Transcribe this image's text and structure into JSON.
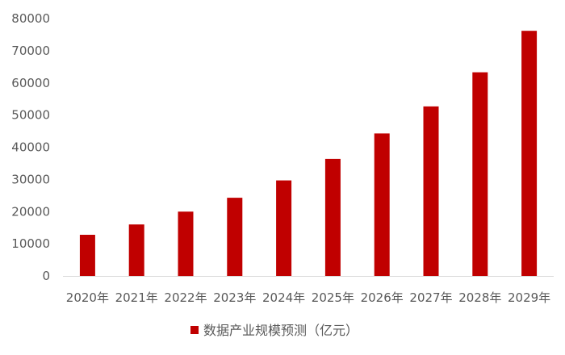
{
  "chart_data": {
    "type": "bar",
    "categories": [
      "2020年",
      "2021年",
      "2022年",
      "2023年",
      "2024年",
      "2025年",
      "2026年",
      "2027年",
      "2028年",
      "2029年"
    ],
    "series": [
      {
        "name": "数据产业规模预测（亿元）",
        "values": [
          12800,
          16000,
          20000,
          24300,
          29700,
          36400,
          44300,
          52700,
          63300,
          76200
        ]
      }
    ],
    "ylim": [
      0,
      80000
    ],
    "yticks": [
      "0",
      "10000",
      "20000",
      "30000",
      "40000",
      "50000",
      "60000",
      "70000",
      "80000"
    ],
    "grid": false,
    "legend": "bottom",
    "bar_color": "#c00000",
    "axis_color": "#d9d9d9",
    "text_color": "#595959"
  }
}
